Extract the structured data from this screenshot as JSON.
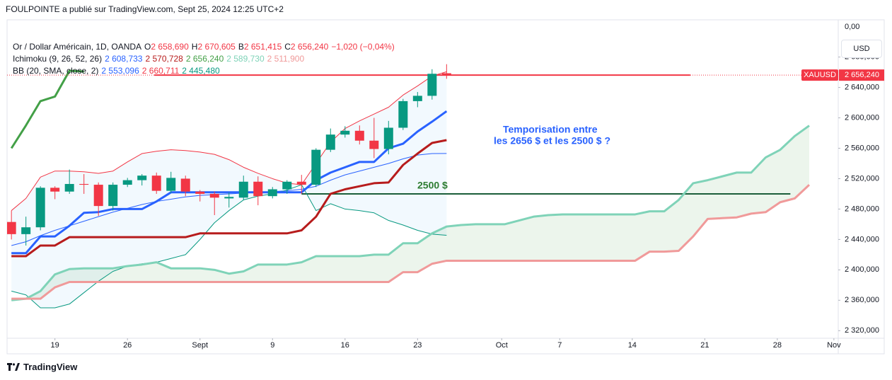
{
  "header": "FOULPOINTE a publié sur TradingView.com, Sept 25, 2024 12:25 UTC+2",
  "footer": "TradingView",
  "chart_data": {
    "type": "candlestick",
    "legend": {
      "symbol": "Or / Dollar Américain, 1D, OANDA",
      "ohlc": [
        {
          "key": "O",
          "text": "2 658,690"
        },
        {
          "key": "H",
          "text": "2 670,605"
        },
        {
          "key": "B",
          "text": "2 651,415"
        },
        {
          "key": "C",
          "text": "2 656,240"
        }
      ],
      "change": "−1,020 (−0,04%)",
      "ohlc_color": "#f23645",
      "indicators": [
        {
          "name": "Ichimoku (9, 26, 52, 26)",
          "values": [
            {
              "text": "2 608,733",
              "color": "#2962ff"
            },
            {
              "text": "2 570,728",
              "color": "#b71c1c"
            },
            {
              "text": "2 656,240",
              "color": "#43a047"
            },
            {
              "text": "2 589,730",
              "color": "#7fd3b8"
            },
            {
              "text": "2 511,900",
              "color": "#f09a9a"
            }
          ]
        },
        {
          "name": "BB (20, SMA, close, 2)",
          "values": [
            {
              "text": "2 553,096",
              "color": "#2962ff"
            },
            {
              "text": "2 660,711",
              "color": "#f23645"
            },
            {
              "text": "2 445,480",
              "color": "#089981"
            }
          ]
        }
      ]
    },
    "currency": "USD",
    "axis_top_label": "0,00",
    "symbol_tag": "XAUUSD",
    "price_tag": "2 656,240",
    "up_color": "#089981",
    "down_color": "#f23645",
    "x": [
      0,
      1,
      2,
      3,
      4,
      5,
      6,
      7,
      8,
      9,
      10,
      11,
      12,
      13,
      14,
      15,
      16,
      17,
      18,
      19,
      20,
      21,
      22,
      23,
      24,
      25,
      26,
      27,
      28,
      29,
      30
    ],
    "open": [
      2463,
      2447,
      2456,
      2508,
      2503,
      2513,
      2512,
      2484,
      2512,
      2518,
      2524,
      2504,
      2520,
      2503,
      2500,
      2494,
      2495,
      2516,
      2497,
      2506,
      2516,
      2512,
      2558,
      2578,
      2583,
      2570,
      2559,
      2587,
      2622,
      2629,
      2658.69
    ],
    "high": [
      2478,
      2470,
      2510,
      2510,
      2532,
      2526,
      2515,
      2515,
      2521,
      2526,
      2528,
      2529,
      2524,
      2505,
      2503,
      2502,
      2524,
      2523,
      2509,
      2518,
      2525,
      2560,
      2586,
      2589,
      2590,
      2600,
      2596,
      2625,
      2634,
      2664,
      2670.605
    ],
    "low": [
      2440,
      2432,
      2452,
      2493,
      2500,
      2500,
      2471,
      2478,
      2509,
      2511,
      2500,
      2501,
      2497,
      2490,
      2472,
      2482,
      2492,
      2485,
      2494,
      2500,
      2500,
      2509,
      2555,
      2574,
      2565,
      2547,
      2552,
      2584,
      2614,
      2624,
      2651.415
    ],
    "close": [
      2447,
      2456,
      2508,
      2503,
      2513,
      2512,
      2484,
      2512,
      2518,
      2524,
      2504,
      2521,
      2503,
      2500,
      2495,
      2496,
      2516,
      2497,
      2506,
      2516,
      2512,
      2558,
      2578,
      2583,
      2570,
      2559,
      2587,
      2622,
      2629,
      2658,
      2656.24
    ],
    "series": [
      {
        "name": "BB upper",
        "color": "#f23645",
        "width": 1,
        "x": [
          0,
          1,
          2,
          3,
          4,
          5,
          6,
          7,
          8,
          9,
          10,
          11,
          12,
          13,
          14,
          15,
          16,
          17,
          18,
          19,
          20,
          21,
          22,
          23,
          24,
          25,
          26,
          27,
          28,
          29,
          30
        ],
        "values": [
          2478,
          2494,
          2522,
          2530,
          2530,
          2529,
          2527,
          2530,
          2542,
          2553,
          2556,
          2558,
          2557,
          2555,
          2552,
          2545,
          2535,
          2527,
          2520,
          2514,
          2512,
          2540,
          2568,
          2586,
          2596,
          2605,
          2614,
          2630,
          2642,
          2655,
          2660.711
        ]
      },
      {
        "name": "BB basis",
        "color": "#2962ff",
        "width": 1,
        "x": [
          0,
          1,
          2,
          3,
          4,
          5,
          6,
          7,
          8,
          9,
          10,
          11,
          12,
          13,
          14,
          15,
          16,
          17,
          18,
          19,
          20,
          21,
          22,
          23,
          24,
          25,
          26,
          27,
          28,
          29,
          30
        ],
        "values": [
          2432,
          2437,
          2445,
          2452,
          2458,
          2464,
          2470,
          2476,
          2481,
          2486,
          2490,
          2493,
          2496,
          2498,
          2499,
          2500,
          2501,
          2502,
          2503,
          2504,
          2506,
          2510,
          2518,
          2525,
          2530,
          2535,
          2540,
          2546,
          2551,
          2553,
          2553.096
        ]
      },
      {
        "name": "BB lower",
        "color": "#089981",
        "width": 1,
        "x": [
          0,
          1,
          2,
          3,
          4,
          5,
          6,
          7,
          8,
          9,
          10,
          11,
          12,
          13,
          14,
          15,
          16,
          17,
          18,
          19,
          20,
          21,
          22,
          23,
          24,
          25,
          26,
          27,
          28,
          29,
          30
        ],
        "values": [
          2372,
          2367,
          2350,
          2350,
          2355,
          2370,
          2385,
          2398,
          2405,
          2408,
          2410,
          2415,
          2420,
          2440,
          2462,
          2478,
          2492,
          2497,
          2500,
          2505,
          2512,
          2478,
          2487,
          2480,
          2478,
          2475,
          2465,
          2459,
          2452,
          2447,
          2445.48
        ]
      },
      {
        "name": "Leading Span A",
        "color": "#7fd3b8",
        "width": 3,
        "x": [
          0,
          1,
          2,
          3,
          4,
          5,
          6,
          7,
          8,
          9,
          10,
          11,
          12,
          13,
          14,
          15,
          16,
          17,
          18,
          19,
          20,
          21,
          22,
          23,
          24,
          25,
          26,
          27,
          28,
          29,
          30,
          31,
          32,
          33,
          34,
          35,
          36,
          37,
          38,
          39,
          40,
          41,
          42,
          43,
          44,
          45,
          46,
          47,
          48,
          49,
          50,
          51,
          52,
          53,
          54,
          55
        ],
        "values": [
          2360,
          2362,
          2372,
          2394,
          2401,
          2402,
          2402,
          2402,
          2405,
          2407,
          2410,
          2402,
          2402,
          2402,
          2400,
          2395,
          2398,
          2407,
          2407,
          2407,
          2410,
          2418,
          2418,
          2418,
          2418,
          2420,
          2420,
          2435,
          2435,
          2448,
          2457,
          2459,
          2460,
          2460,
          2460,
          2465,
          2470,
          2472,
          2473,
          2473,
          2473,
          2473,
          2473,
          2473,
          2477,
          2477,
          2492,
          2514,
          2518,
          2523,
          2528,
          2528,
          2548,
          2558,
          2576,
          2589.73
        ]
      },
      {
        "name": "Leading Span B",
        "color": "#f09a9a",
        "width": 3,
        "x": [
          0,
          1,
          2,
          3,
          4,
          5,
          6,
          7,
          8,
          9,
          10,
          11,
          12,
          13,
          14,
          15,
          16,
          17,
          18,
          19,
          20,
          21,
          22,
          23,
          24,
          25,
          26,
          27,
          28,
          29,
          30,
          31,
          32,
          33,
          34,
          35,
          36,
          37,
          38,
          39,
          40,
          41,
          42,
          43,
          44,
          45,
          46,
          47,
          48,
          49,
          50,
          51,
          52,
          53,
          54,
          55
        ],
        "values": [
          2362,
          2362,
          2362,
          2377,
          2384,
          2384,
          2384,
          2384,
          2384,
          2384,
          2384,
          2384,
          2384,
          2384,
          2384,
          2384,
          2384,
          2384,
          2384,
          2384,
          2384,
          2384,
          2384,
          2384,
          2384,
          2384,
          2384,
          2397,
          2397,
          2408,
          2412,
          2412,
          2412,
          2412,
          2412,
          2412,
          2412,
          2412,
          2412,
          2412,
          2412,
          2412,
          2412,
          2412,
          2424,
          2424,
          2425,
          2444,
          2467,
          2468,
          2469,
          2474,
          2476,
          2489,
          2494,
          2511.9
        ]
      },
      {
        "name": "Lagging Span",
        "color": "#43a047",
        "width": 3,
        "x": [
          0,
          1,
          2,
          3,
          4,
          5
        ],
        "values": [
          2560,
          2590,
          2622,
          2628,
          2662,
          2661
        ]
      },
      {
        "name": "Base Line",
        "color": "#b71c1c",
        "width": 3,
        "x": [
          0,
          1,
          2,
          3,
          4,
          5,
          6,
          7,
          8,
          9,
          10,
          11,
          12,
          13,
          14,
          15,
          16,
          17,
          18,
          19,
          20,
          21,
          22,
          23,
          24,
          25,
          26,
          27,
          28,
          29,
          30
        ],
        "values": [
          2418,
          2418,
          2432,
          2432,
          2443,
          2443,
          2443,
          2443,
          2443,
          2443,
          2443,
          2443,
          2443,
          2448,
          2448,
          2448,
          2448,
          2448,
          2448,
          2448,
          2452,
          2470,
          2500,
          2506,
          2510,
          2514,
          2515,
          2538,
          2553,
          2567,
          2570.728
        ]
      },
      {
        "name": "Conversion Line",
        "color": "#2962ff",
        "width": 3,
        "x": [
          0,
          1,
          2,
          3,
          4,
          5,
          6,
          7,
          8,
          9,
          10,
          11,
          12,
          13,
          14,
          15,
          16,
          17,
          18,
          19,
          20,
          21,
          22,
          23,
          24,
          25,
          26,
          27,
          28,
          29,
          30
        ],
        "values": [
          2422,
          2422,
          2444,
          2444,
          2458,
          2475,
          2476,
          2480,
          2480,
          2480,
          2490,
          2502,
          2502,
          2502,
          2502,
          2502,
          2502,
          2502,
          2502,
          2502,
          2502,
          2518,
          2528,
          2535,
          2542,
          2542,
          2560,
          2566,
          2582,
          2595,
          2608.733
        ]
      }
    ],
    "hlines": [
      {
        "value": 2656.24,
        "x": [
          9.85,
          46.8
        ],
        "color": "#f23645"
      },
      {
        "value": 2500,
        "x": [
          20,
          53.7
        ],
        "color": "#1b5e3a"
      }
    ],
    "annotations": [
      {
        "text": "Temporisation entre",
        "color": "#2962ff"
      },
      {
        "text": "les 2656 $ et les 2500 $ ?",
        "color": "#2962ff"
      },
      {
        "text": "2500 $",
        "color": "#2e7d32"
      }
    ],
    "xlim": [
      -0.3,
      57
    ],
    "ylim": [
      2310,
      2729
    ],
    "xticks": [
      {
        "value": 3,
        "label": "19"
      },
      {
        "value": 8,
        "label": "26"
      },
      {
        "value": 13,
        "label": "Sept"
      },
      {
        "value": 18,
        "label": "9"
      },
      {
        "value": 23,
        "label": "16"
      },
      {
        "value": 28,
        "label": "23"
      },
      {
        "value": 33.8,
        "label": "Oct"
      },
      {
        "value": 37.8,
        "label": "7"
      },
      {
        "value": 42.8,
        "label": "14"
      },
      {
        "value": 47.8,
        "label": "21"
      },
      {
        "value": 52.8,
        "label": "28"
      },
      {
        "value": 56.7,
        "label": "Nov"
      }
    ],
    "yticks": [
      {
        "value": 2320,
        "label": "2 320,000"
      },
      {
        "value": 2360,
        "label": "2 360,000"
      },
      {
        "value": 2400,
        "label": "2 400,000"
      },
      {
        "value": 2440,
        "label": "2 440,000"
      },
      {
        "value": 2480,
        "label": "2 480,000"
      },
      {
        "value": 2520,
        "label": "2 520,000"
      },
      {
        "value": 2560,
        "label": "2 560,000"
      },
      {
        "value": 2600,
        "label": "2 600,000"
      },
      {
        "value": 2640,
        "label": "2 640,000"
      },
      {
        "value": 2680,
        "label": "2 680,000"
      }
    ]
  }
}
